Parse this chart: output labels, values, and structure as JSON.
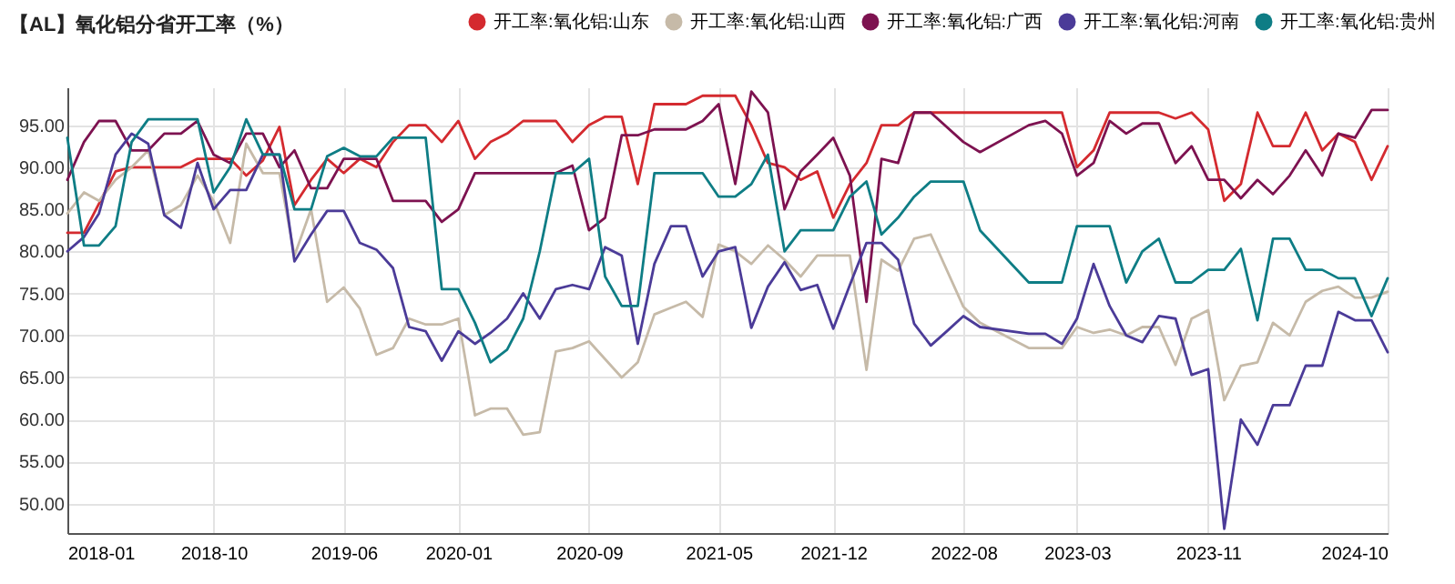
{
  "chart_data": {
    "type": "line",
    "title": "【AL】氧化铝分省开工率（%）",
    "ylim": [
      46.5,
      99.5
    ],
    "yticks": [
      {
        "value": 50,
        "label": "50.00"
      },
      {
        "value": 55,
        "label": "55.00"
      },
      {
        "value": 60,
        "label": "60.00"
      },
      {
        "value": 65,
        "label": "65.00"
      },
      {
        "value": 70,
        "label": "70.00"
      },
      {
        "value": 75,
        "label": "75.00"
      },
      {
        "value": 80,
        "label": "80.00"
      },
      {
        "value": 85,
        "label": "85.00"
      },
      {
        "value": 90,
        "label": "90.00"
      },
      {
        "value": 95,
        "label": "95.00"
      }
    ],
    "xlim": [
      "2018-01",
      "2024-10"
    ],
    "xticks": [
      "2018-01",
      "2018-10",
      "2019-06",
      "2020-01",
      "2020-09",
      "2021-05",
      "2021-12",
      "2022-08",
      "2023-03",
      "2023-11",
      "2024-10"
    ],
    "grid": true,
    "legend": "top right",
    "series": [
      {
        "name": "开工率:氧化铝:山东",
        "color": "#d42a2f",
        "x": [
          "2018-01",
          "2018-02",
          "2018-04",
          "2018-05",
          "2018-08",
          "2018-09",
          "2018-11",
          "2018-12",
          "2019-01",
          "2019-02",
          "2019-03",
          "2019-04",
          "2019-05",
          "2019-06",
          "2019-07",
          "2019-08",
          "2019-09",
          "2019-10",
          "2019-11",
          "2019-12",
          "2020-01",
          "2020-02",
          "2020-03",
          "2020-04",
          "2020-05",
          "2020-07",
          "2020-08",
          "2020-09",
          "2020-10",
          "2020-11",
          "2020-12",
          "2021-01",
          "2021-03",
          "2021-04",
          "2021-06",
          "2021-07",
          "2021-08",
          "2021-09",
          "2021-10",
          "2021-11",
          "2021-12",
          "2022-01",
          "2022-02",
          "2022-03",
          "2022-04",
          "2022-05",
          "2023-02",
          "2023-03",
          "2023-04",
          "2023-05",
          "2023-08",
          "2023-09",
          "2023-10",
          "2023-11",
          "2023-12",
          "2024-01",
          "2024-02",
          "2024-03",
          "2024-04",
          "2024-05",
          "2024-06",
          "2024-07",
          "2024-08",
          "2024-09",
          "2024-10"
        ],
        "values": [
          82.2,
          82.2,
          89.5,
          90,
          90,
          91,
          91,
          89,
          90.8,
          94.8,
          85.5,
          88.5,
          91,
          89.3,
          91,
          90,
          93,
          95,
          95,
          93,
          95.5,
          91,
          93,
          94,
          95.5,
          95.5,
          93,
          95,
          96,
          96,
          88,
          97.5,
          97.5,
          98.5,
          98.5,
          95,
          90.5,
          90,
          88.5,
          89.5,
          84,
          88,
          90.5,
          95,
          95,
          96.5,
          96.5,
          90,
          92,
          96.5,
          96.5,
          95.8,
          96.5,
          94.5,
          86,
          88,
          96.5,
          92.5,
          92.5,
          96.5,
          92,
          94,
          93,
          88.5,
          92.5
        ]
      },
      {
        "name": "开工率:氧化铝:山西",
        "color": "#c6baa8",
        "x": [
          "2018-01",
          "2018-02",
          "2018-03",
          "2018-04",
          "2018-05",
          "2018-06",
          "2018-07",
          "2018-08",
          "2018-09",
          "2018-10",
          "2018-11",
          "2018-12",
          "2019-01",
          "2019-02",
          "2019-03",
          "2019-04",
          "2019-05",
          "2019-06",
          "2019-07",
          "2019-08",
          "2019-09",
          "2019-10",
          "2019-11",
          "2019-12",
          "2020-01",
          "2020-02",
          "2020-03",
          "2020-04",
          "2020-05",
          "2020-06",
          "2020-07",
          "2020-08",
          "2020-09",
          "2020-11",
          "2020-12",
          "2021-01",
          "2021-02",
          "2021-03",
          "2021-04",
          "2021-05",
          "2021-06",
          "2021-07",
          "2021-08",
          "2021-09",
          "2021-10",
          "2021-11",
          "2022-01",
          "2022-02",
          "2022-03",
          "2022-04",
          "2022-05",
          "2022-06",
          "2022-08",
          "2022-09",
          "2022-12",
          "2023-02",
          "2023-03",
          "2023-04",
          "2023-05",
          "2023-06",
          "2023-07",
          "2023-08",
          "2023-09",
          "2023-10",
          "2023-11",
          "2023-12",
          "2024-01",
          "2024-02",
          "2024-03",
          "2024-04",
          "2024-05",
          "2024-06",
          "2024-07",
          "2024-08",
          "2024-09",
          "2024-10"
        ],
        "values": [
          84.5,
          87,
          86,
          88.5,
          90,
          92,
          84.3,
          85.5,
          89,
          86,
          81,
          92.8,
          89.3,
          89.3,
          79.5,
          85,
          74,
          75.7,
          73.2,
          67.7,
          68.5,
          72,
          71.3,
          71.3,
          72,
          60.5,
          61.3,
          61.3,
          58.2,
          58.5,
          68.1,
          68.5,
          69.3,
          65,
          66.8,
          72.5,
          73.3,
          74,
          72.2,
          80.8,
          80,
          78.5,
          80.7,
          79,
          77,
          79.5,
          79.5,
          65.9,
          79,
          77.7,
          81.5,
          82,
          73.4,
          71.5,
          68.5,
          68.5,
          71,
          70.3,
          70.7,
          70,
          71,
          71,
          66.5,
          72,
          73,
          62.3,
          66.4,
          66.8,
          71.5,
          70,
          74,
          75.3,
          75.8,
          74.5,
          74.5,
          75.2
        ]
      },
      {
        "name": "开工率:氧化铝:广西",
        "color": "#7d1250",
        "x": [
          "2018-01",
          "2018-02",
          "2018-03",
          "2018-04",
          "2018-05",
          "2018-06",
          "2018-07",
          "2018-08",
          "2018-09",
          "2018-10",
          "2018-11",
          "2018-12",
          "2019-01",
          "2019-02",
          "2019-03",
          "2019-04",
          "2019-05",
          "2019-06",
          "2019-07",
          "2019-08",
          "2019-09",
          "2019-11",
          "2019-12",
          "2020-01",
          "2020-02",
          "2020-06",
          "2020-07",
          "2020-08",
          "2020-09",
          "2020-10",
          "2020-11",
          "2020-12",
          "2021-01",
          "2021-03",
          "2021-04",
          "2021-05",
          "2021-06",
          "2021-07",
          "2021-08",
          "2021-09",
          "2021-10",
          "2021-11",
          "2021-12",
          "2022-01",
          "2022-02",
          "2022-03",
          "2022-04",
          "2022-05",
          "2022-06",
          "2022-08",
          "2022-09",
          "2022-12",
          "2023-01",
          "2023-02",
          "2023-03",
          "2023-04",
          "2023-05",
          "2023-06",
          "2023-07",
          "2023-08",
          "2023-09",
          "2023-10",
          "2023-11",
          "2023-12",
          "2024-01",
          "2024-02",
          "2024-03",
          "2024-04",
          "2024-05",
          "2024-06",
          "2024-07",
          "2024-08",
          "2024-09",
          "2024-10"
        ],
        "values": [
          88.5,
          93,
          95.5,
          95.5,
          92,
          92,
          94,
          94,
          95.5,
          91.5,
          90.5,
          94,
          94,
          90,
          92,
          87.5,
          87.5,
          91,
          91,
          91,
          86,
          86,
          83.5,
          85,
          89.3,
          89.3,
          89.3,
          90.2,
          82.5,
          84,
          93.8,
          93.8,
          94.5,
          94.5,
          95.5,
          97.5,
          88,
          99,
          96.5,
          85,
          89.5,
          91.5,
          93.5,
          89,
          74,
          91,
          90.5,
          96.5,
          96.5,
          93,
          91.8,
          95,
          95.5,
          94,
          89,
          90.5,
          95.5,
          94,
          95.2,
          95.2,
          90.5,
          92.5,
          88.5,
          88.5,
          86.3,
          88.5,
          86.8,
          89,
          92,
          89,
          94,
          93.5,
          96.8,
          96.8
        ]
      },
      {
        "name": "开工率:氧化铝:河南",
        "color": "#4b3b98",
        "x": [
          "2018-01",
          "2018-02",
          "2018-03",
          "2018-04",
          "2018-05",
          "2018-06",
          "2018-07",
          "2018-08",
          "2018-09",
          "2018-10",
          "2018-11",
          "2018-12",
          "2019-01",
          "2019-02",
          "2019-03",
          "2019-04",
          "2019-05",
          "2019-06",
          "2019-07",
          "2019-08",
          "2019-09",
          "2019-10",
          "2019-11",
          "2019-12",
          "2020-01",
          "2020-02",
          "2020-03",
          "2020-04",
          "2020-05",
          "2020-06",
          "2020-07",
          "2020-08",
          "2020-09",
          "2020-10",
          "2020-11",
          "2020-12",
          "2021-01",
          "2021-02",
          "2021-03",
          "2021-04",
          "2021-05",
          "2021-06",
          "2021-07",
          "2021-08",
          "2021-09",
          "2021-10",
          "2021-11",
          "2021-12",
          "2022-01",
          "2022-02",
          "2022-03",
          "2022-04",
          "2022-05",
          "2022-06",
          "2022-07",
          "2022-08",
          "2022-09",
          "2022-12",
          "2023-01",
          "2023-02",
          "2023-03",
          "2023-04",
          "2023-05",
          "2023-06",
          "2023-07",
          "2023-08",
          "2023-09",
          "2023-10",
          "2023-11",
          "2023-12",
          "2024-01",
          "2024-02",
          "2024-03",
          "2024-04",
          "2024-05",
          "2024-06",
          "2024-07",
          "2024-08",
          "2024-09",
          "2024-10"
        ],
        "values": [
          80,
          81.7,
          84.5,
          91.5,
          94,
          92.8,
          84.3,
          82.8,
          90.5,
          85,
          87.3,
          87.3,
          91.5,
          91.5,
          78.8,
          82,
          84.8,
          84.8,
          81,
          80.2,
          78,
          71,
          70.5,
          67,
          70.5,
          69,
          70.3,
          72,
          75,
          72,
          75.5,
          76,
          75.5,
          80.5,
          79.5,
          69,
          78.5,
          83,
          83,
          77,
          80,
          80.5,
          70.9,
          75.8,
          78.7,
          75.4,
          76,
          70.8,
          76,
          81,
          81,
          79,
          71.4,
          68.8,
          70.5,
          72.3,
          71,
          70.2,
          70.2,
          69,
          72,
          78.5,
          73.5,
          70,
          69.2,
          72.3,
          72,
          65.3,
          66,
          47,
          60,
          57,
          61.7,
          61.7,
          66.4,
          66.4,
          72.8,
          71.8,
          71.8,
          68
        ]
      },
      {
        "name": "开工率:氧化铝:贵州",
        "color": "#0e7d85",
        "x": [
          "2018-01",
          "2018-02",
          "2018-03",
          "2018-04",
          "2018-05",
          "2018-06",
          "2018-09",
          "2018-10",
          "2018-11",
          "2018-12",
          "2019-01",
          "2019-02",
          "2019-03",
          "2019-04",
          "2019-05",
          "2019-06",
          "2019-07",
          "2019-08",
          "2019-09",
          "2019-11",
          "2019-12",
          "2020-01",
          "2020-02",
          "2020-03",
          "2020-04",
          "2020-05",
          "2020-06",
          "2020-07",
          "2020-08",
          "2020-09",
          "2020-10",
          "2020-11",
          "2020-12",
          "2021-01",
          "2021-04",
          "2021-05",
          "2021-06",
          "2021-07",
          "2021-08",
          "2021-09",
          "2021-10",
          "2021-12",
          "2022-01",
          "2022-02",
          "2022-03",
          "2022-04",
          "2022-05",
          "2022-06",
          "2022-08",
          "2022-09",
          "2022-12",
          "2023-02",
          "2023-03",
          "2023-05",
          "2023-06",
          "2023-07",
          "2023-08",
          "2023-09",
          "2023-10",
          "2023-11",
          "2023-12",
          "2024-01",
          "2024-02",
          "2024-03",
          "2024-04",
          "2024-05",
          "2024-06",
          "2024-07",
          "2024-08",
          "2024-09",
          "2024-10"
        ],
        "values": [
          93.5,
          80.7,
          80.7,
          83,
          93,
          95.7,
          95.7,
          87,
          90,
          95.7,
          91.5,
          91.5,
          85,
          85,
          91.3,
          92.3,
          91.3,
          91.3,
          93.5,
          93.5,
          75.5,
          75.5,
          71.5,
          66.8,
          68.3,
          72,
          80,
          89.3,
          89.3,
          91,
          77,
          73.5,
          73.5,
          89.3,
          89.3,
          86.5,
          86.5,
          88,
          91.5,
          80,
          82.5,
          82.5,
          86.5,
          88.3,
          82,
          84,
          86.5,
          88.3,
          88.3,
          82.5,
          76.3,
          76.3,
          83,
          83,
          76.3,
          80,
          81.5,
          76.3,
          76.3,
          77.8,
          77.8,
          80.3,
          71.8,
          81.5,
          81.5,
          77.8,
          77.8,
          76.8,
          76.8,
          72.3,
          76.8
        ]
      }
    ]
  }
}
